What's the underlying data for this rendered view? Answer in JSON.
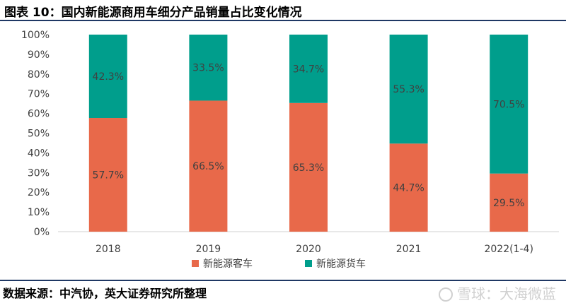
{
  "header": {
    "title": "图表 10：国内新能源商用车细分产品销量占比变化情况"
  },
  "footer": {
    "source": "数据来源：中汽协，英大证券研究所整理",
    "watermark": "雪球：大海微蓝"
  },
  "colors": {
    "bus": "#e8694a",
    "truck": "#009e8c",
    "axis": "#d0d0d0",
    "text": "#404040"
  },
  "chart_data": {
    "type": "bar",
    "stacked": true,
    "categories": [
      "2018",
      "2019",
      "2020",
      "2021",
      "2022(1-4)"
    ],
    "series": [
      {
        "name": "新能源客车",
        "values": [
          57.7,
          66.5,
          65.3,
          44.7,
          29.5
        ],
        "labels": [
          "57.7%",
          "66.5%",
          "65.3%",
          "44.7%",
          "29.5%"
        ]
      },
      {
        "name": "新能源货车",
        "values": [
          42.3,
          33.5,
          34.7,
          55.3,
          70.5
        ],
        "labels": [
          "42.3%",
          "33.5%",
          "34.7%",
          "55.3%",
          "70.5%"
        ]
      }
    ],
    "ylim": [
      0,
      100
    ],
    "yticks": [
      "0%",
      "10%",
      "20%",
      "30%",
      "40%",
      "50%",
      "60%",
      "70%",
      "80%",
      "90%",
      "100%"
    ],
    "legend": "bottom",
    "grid": false
  }
}
